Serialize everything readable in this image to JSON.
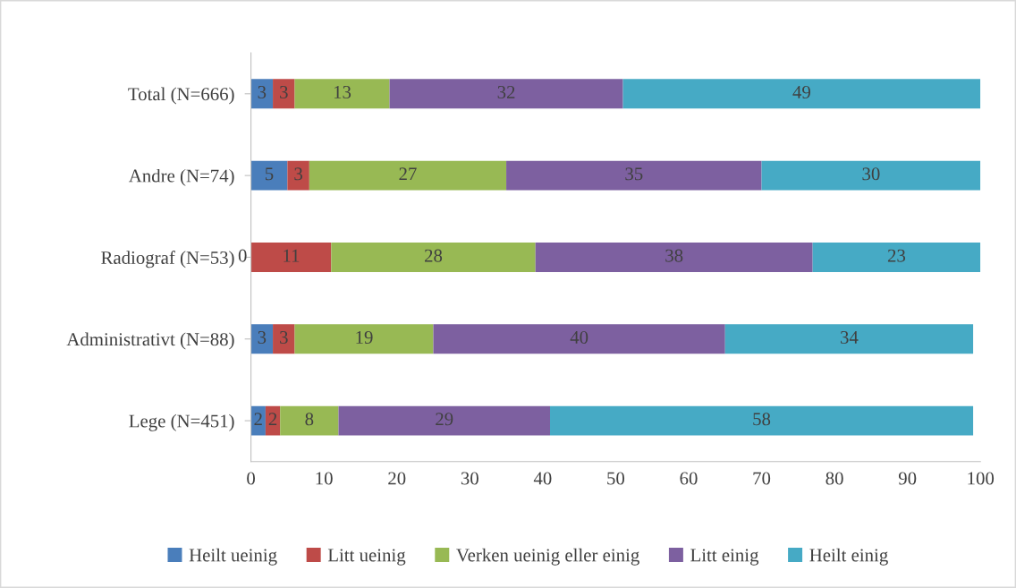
{
  "chart_data": {
    "type": "bar",
    "orientation": "horizontal",
    "stacked": true,
    "data_labels": true,
    "categories": [
      "Total (N=666)",
      "Andre (N=74)",
      "Radiograf (N=53)",
      "Administrativt (N=88)",
      "Lege (N=451)"
    ],
    "series": [
      {
        "name": "Heilt ueinig",
        "color": "#4a7ebb",
        "values": [
          3,
          5,
          null,
          3,
          2
        ]
      },
      {
        "name": "Litt ueinig",
        "color": "#be4b48",
        "values": [
          3,
          3,
          11,
          3,
          2
        ]
      },
      {
        "name": "Verken ueinig eller einig",
        "color": "#98b954",
        "values": [
          13,
          27,
          28,
          19,
          8
        ]
      },
      {
        "name": "Litt einig",
        "color": "#7d60a0",
        "values": [
          32,
          35,
          38,
          40,
          29
        ]
      },
      {
        "name": "Heilt einig",
        "color": "#46aac5",
        "values": [
          49,
          30,
          23,
          34,
          58
        ]
      }
    ],
    "xlim": [
      0,
      100
    ],
    "xticks": [
      0,
      10,
      20,
      30,
      40,
      50,
      60,
      70,
      80,
      90,
      100
    ],
    "annotations": [
      {
        "text": "0",
        "x": 0,
        "y": "Radiograf (N=53)"
      }
    ],
    "grid": false,
    "legend": "bottom"
  }
}
